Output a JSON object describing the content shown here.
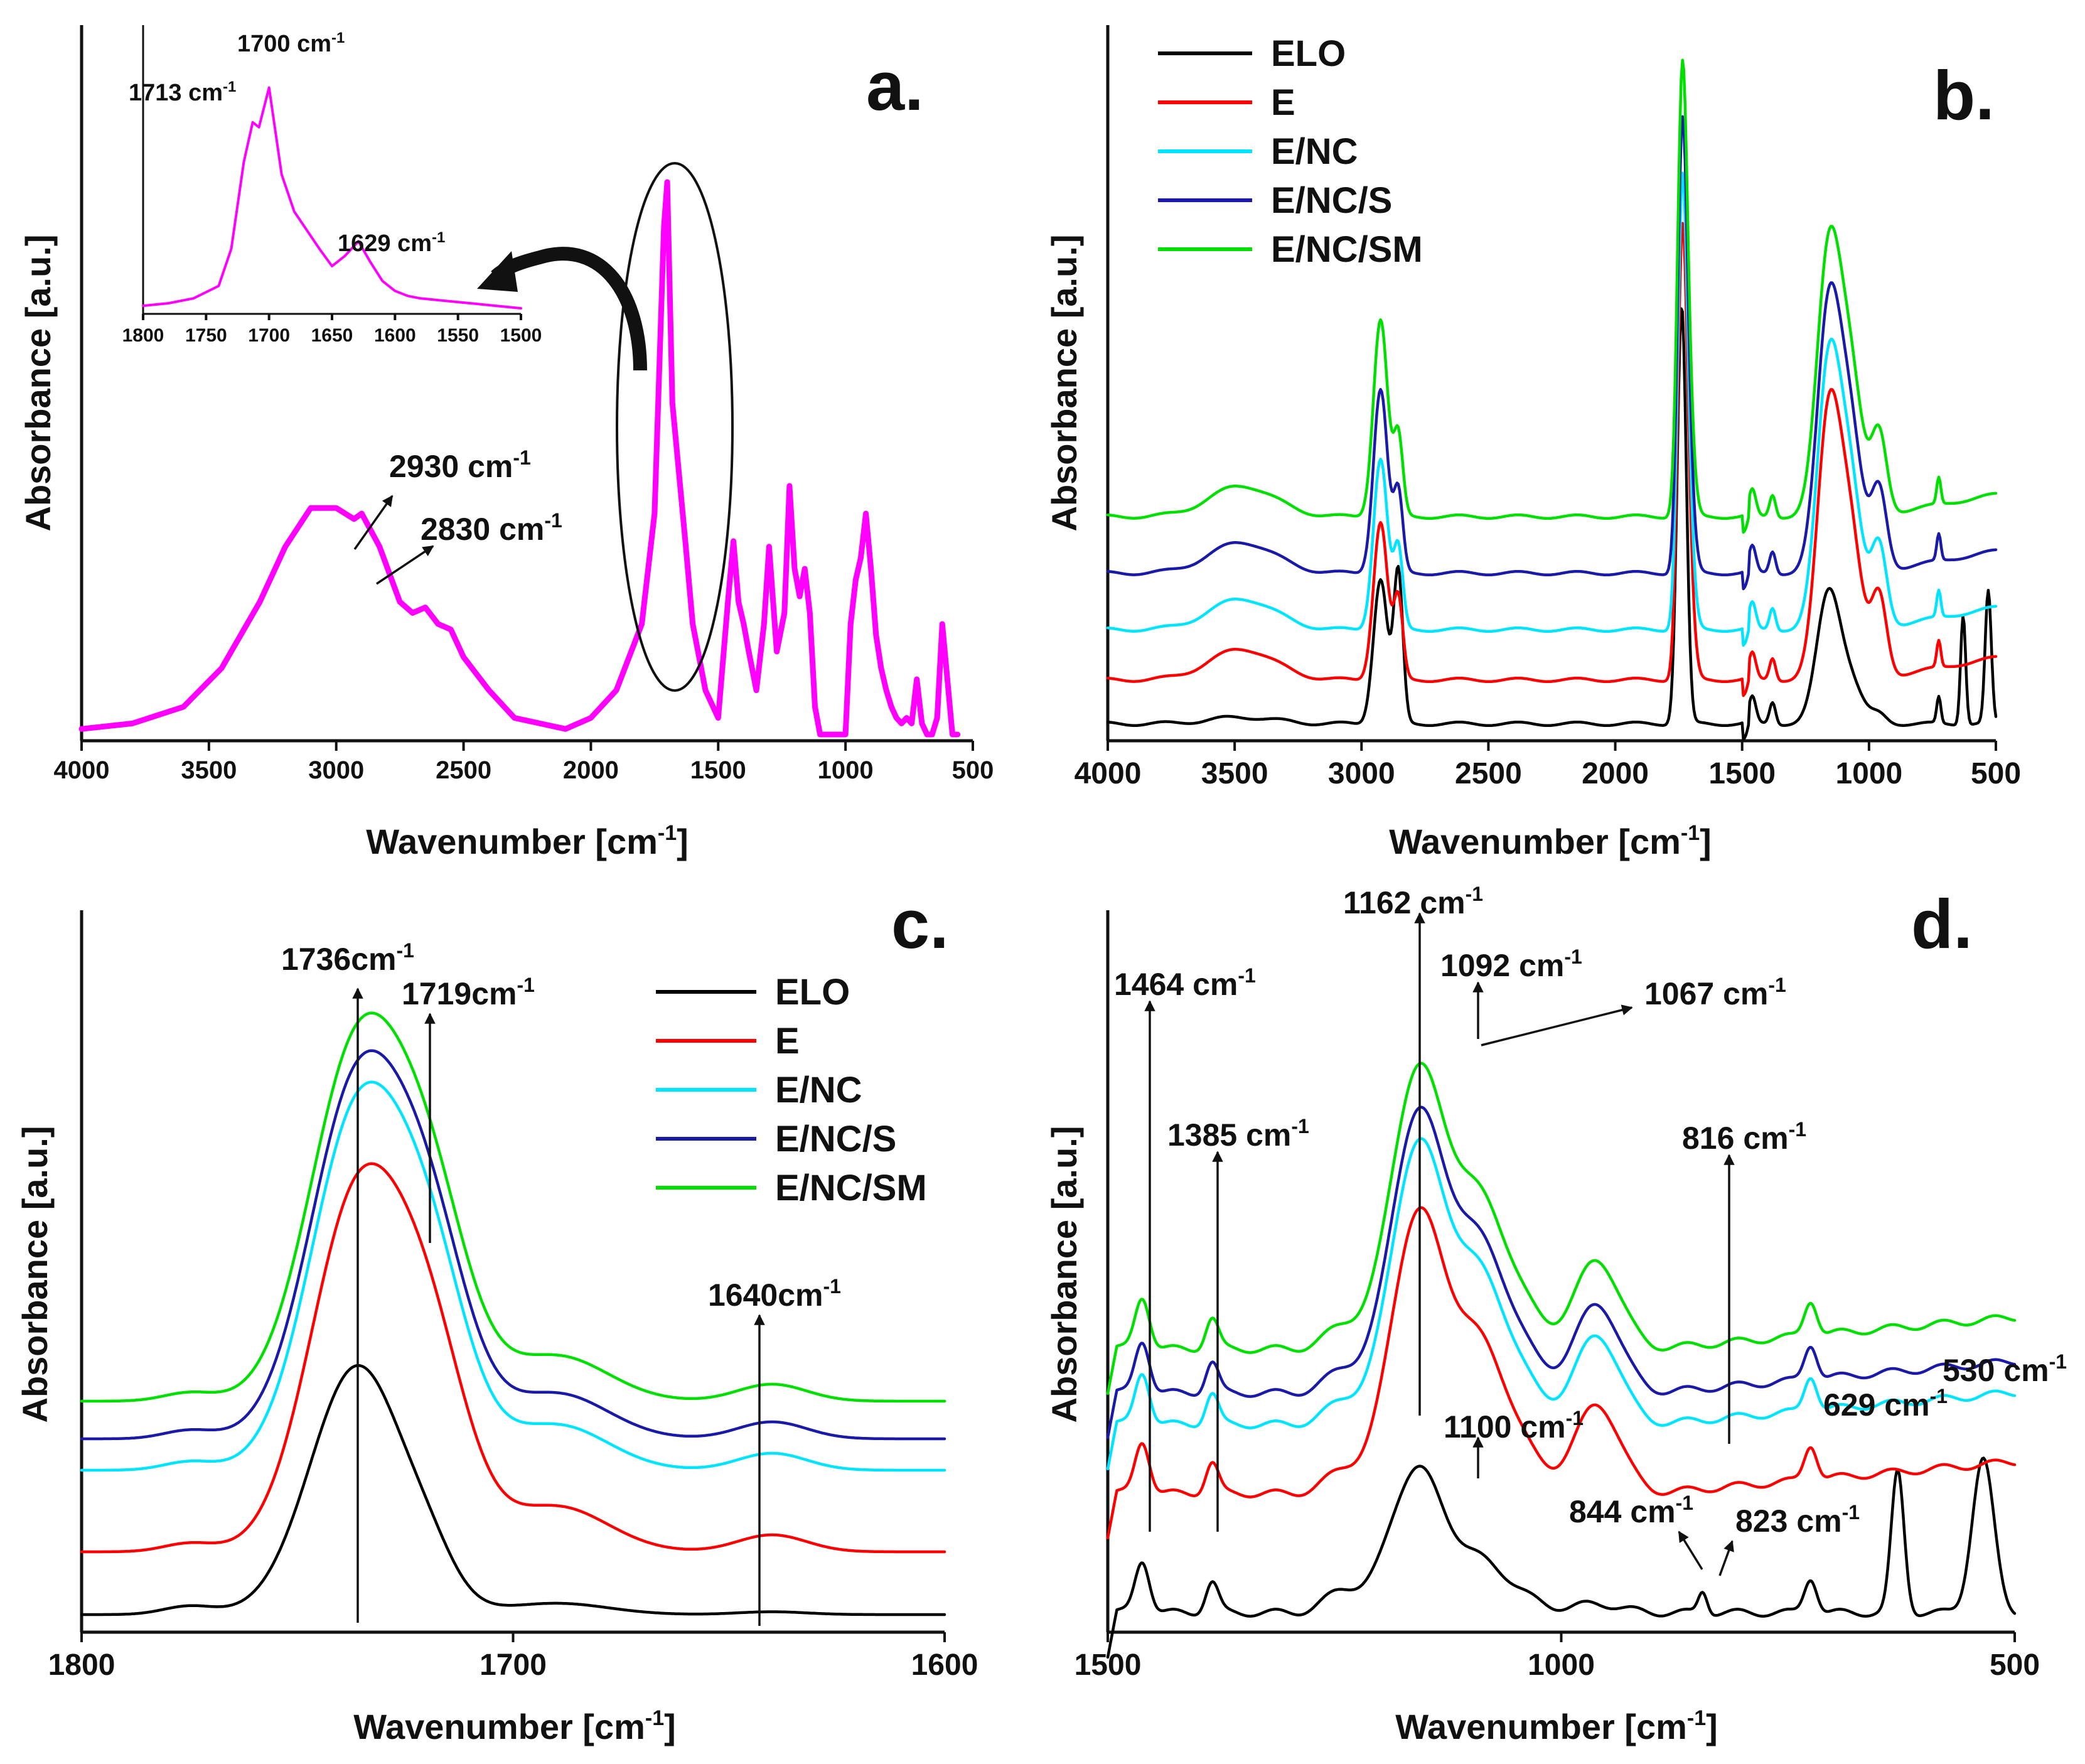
{
  "panels": {
    "a": {
      "panel_label": "a.",
      "ylabel": "Absorbance [a.u.]",
      "xlabel": "Wavenumber [cm",
      "xlabel_sup": "-1",
      "xlabel_end": "]",
      "xticks": [
        "4000",
        "3500",
        "3000",
        "2500",
        "2000",
        "1500",
        "1000",
        "500"
      ],
      "ann_2930": "2930 cm",
      "ann_2830": "2830 cm",
      "inset": {
        "xticks": [
          "1800",
          "1750",
          "1700",
          "1650",
          "1600",
          "1550",
          "1500"
        ],
        "ann_1713": "1713 cm",
        "ann_1700": "1700 cm",
        "ann_1629": "1629 cm"
      }
    },
    "b": {
      "panel_label": "b.",
      "ylabel": "Absorbance [a.u.]",
      "xlabel": "Wavenumber [cm",
      "xlabel_sup": "-1",
      "xlabel_end": "]",
      "xticks": [
        "4000",
        "3500",
        "3000",
        "2500",
        "2000",
        "1500",
        "1000",
        "500"
      ]
    },
    "c": {
      "panel_label": "c.",
      "ylabel": "Absorbance [a.u.]",
      "xlabel": "Wavenumber [cm",
      "xlabel_sup": "-1",
      "xlabel_end": "]",
      "xticks": [
        "1800",
        "1700",
        "1600"
      ],
      "ann_1736": "1736cm",
      "ann_1719": "1719cm",
      "ann_1640": "1640cm"
    },
    "d": {
      "panel_label": "d.",
      "ylabel": "Absorbance [a.u.]",
      "xlabel": "Wavenumber [cm",
      "xlabel_sup": "-1",
      "xlabel_end": "]",
      "xticks": [
        "1500",
        "1000",
        "500"
      ],
      "ann_1162": "1162 cm",
      "ann_1464": "1464 cm",
      "ann_1092": "1092 cm",
      "ann_1067": "1067 cm",
      "ann_1385": "1385 cm",
      "ann_816": "816 cm",
      "ann_530": "530 cm",
      "ann_629": "629 cm",
      "ann_1100": "1100 cm",
      "ann_844": "844 cm",
      "ann_823": "823 cm"
    },
    "sup": "-1"
  },
  "legend": [
    "ELO",
    "E",
    "E/NC",
    "E/NC/S",
    "E/NC/SM"
  ],
  "colors": {
    "ELO": "#000000",
    "E": "#ff0000",
    "E/NC": "#00e5ff",
    "E/NC/S": "#1a1aa8",
    "E/NC/SM": "#00e000",
    "single": "#ff00ff"
  },
  "chart_data": [
    {
      "type": "line",
      "title": "a.",
      "xlabel": "Wavenumber [cm-1]",
      "ylabel": "Absorbance [a.u.]",
      "xlim": [
        4000,
        500
      ],
      "series": [
        {
          "name": "sample",
          "color": "#ff00ff",
          "x": [
            4000,
            3800,
            3600,
            3450,
            3300,
            3200,
            3100,
            3000,
            2930,
            2900,
            2830,
            2750,
            2700,
            2650,
            2600,
            2550,
            2500,
            2400,
            2300,
            2200,
            2100,
            2000,
            1900,
            1800,
            1750,
            1713,
            1700,
            1680,
            1629,
            1600,
            1550,
            1500,
            1460,
            1440,
            1420,
            1400,
            1380,
            1350,
            1320,
            1300,
            1270,
            1240,
            1220,
            1200,
            1180,
            1160,
            1140,
            1120,
            1100,
            1080,
            1060,
            1040,
            1020,
            1000,
            980,
            960,
            940,
            920,
            900,
            880,
            860,
            840,
            820,
            800,
            780,
            760,
            740,
            720,
            700,
            680,
            660,
            640,
            620,
            600,
            580,
            560
          ],
          "y": [
            0.01,
            0.02,
            0.05,
            0.12,
            0.24,
            0.34,
            0.41,
            0.41,
            0.39,
            0.4,
            0.34,
            0.24,
            0.22,
            0.23,
            0.2,
            0.19,
            0.14,
            0.08,
            0.03,
            0.02,
            0.01,
            0.03,
            0.08,
            0.2,
            0.4,
            0.92,
            1.0,
            0.6,
            0.35,
            0.2,
            0.08,
            0.03,
            0.25,
            0.35,
            0.24,
            0.2,
            0.15,
            0.08,
            0.2,
            0.34,
            0.15,
            0.22,
            0.45,
            0.3,
            0.25,
            0.3,
            0.22,
            0.05,
            0.0,
            0.0,
            0.0,
            0.0,
            0.0,
            0.0,
            0.2,
            0.28,
            0.32,
            0.4,
            0.3,
            0.18,
            0.12,
            0.08,
            0.05,
            0.03,
            0.02,
            0.03,
            0.02,
            0.1,
            0.02,
            0.0,
            0.0,
            0.03,
            0.2,
            0.1,
            0.0,
            0.0
          ]
        }
      ],
      "annotations": [
        "2930 cm-1",
        "2830 cm-1"
      ],
      "inset": {
        "xlim": [
          1800,
          1500
        ],
        "x": [
          1800,
          1780,
          1760,
          1740,
          1730,
          1720,
          1713,
          1708,
          1700,
          1690,
          1680,
          1660,
          1650,
          1640,
          1629,
          1620,
          1610,
          1600,
          1590,
          1580,
          1560,
          1540,
          1520,
          1500
        ],
        "y": [
          0.02,
          0.03,
          0.05,
          0.1,
          0.25,
          0.6,
          0.76,
          0.74,
          0.9,
          0.55,
          0.4,
          0.25,
          0.18,
          0.22,
          0.28,
          0.2,
          0.12,
          0.08,
          0.06,
          0.05,
          0.04,
          0.03,
          0.02,
          0.01
        ],
        "annotations": [
          "1713 cm-1",
          "1700 cm-1",
          "1629 cm-1"
        ]
      }
    },
    {
      "type": "line",
      "title": "b.",
      "xlabel": "Wavenumber [cm-1]",
      "ylabel": "Absorbance [a.u.]",
      "xlim": [
        4000,
        500
      ],
      "legend": [
        "ELO",
        "E",
        "E/NC",
        "E/NC/S",
        "E/NC/SM"
      ],
      "offsets": [
        0,
        0.12,
        0.24,
        0.36,
        0.48
      ]
    },
    {
      "type": "line",
      "title": "c.",
      "xlabel": "Wavenumber [cm-1]",
      "ylabel": "Absorbance [a.u.]",
      "xlim": [
        1800,
        1600
      ],
      "legend": [
        "ELO",
        "E",
        "E/NC",
        "E/NC/S",
        "E/NC/SM"
      ],
      "annotations": [
        "1736cm-1",
        "1719cm-1",
        "1640cm-1"
      ]
    },
    {
      "type": "line",
      "title": "d.",
      "xlabel": "Wavenumber [cm-1]",
      "ylabel": "Absorbance [a.u.]",
      "xlim": [
        1500,
        500
      ],
      "annotations": [
        "1162 cm-1",
        "1464 cm-1",
        "1092 cm-1",
        "1067 cm-1",
        "1385 cm-1",
        "816 cm-1",
        "530 cm-1",
        "629 cm-1",
        "1100 cm-1",
        "844 cm-1",
        "823 cm-1"
      ]
    }
  ]
}
